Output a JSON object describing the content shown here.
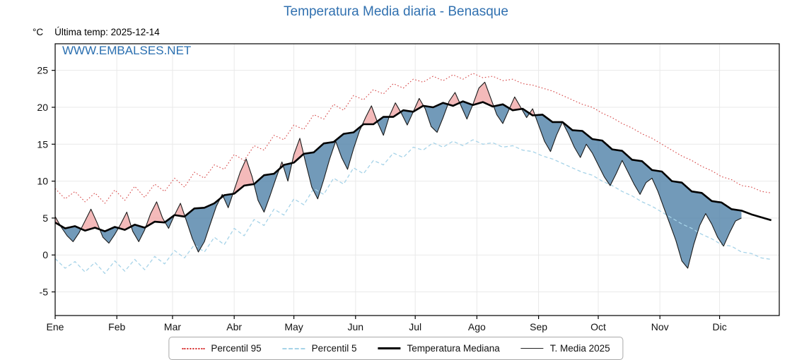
{
  "title": "Temperatura Media diaria - Benasque",
  "header": {
    "units_label": "°C",
    "last_temp_label": "Última temp: 2025-12-14"
  },
  "watermark": "WWW.EMBALSES.NET",
  "legend": {
    "items": [
      {
        "label": "Percentil 95",
        "color": "#d62728",
        "line_style": "dotted",
        "weight": 2
      },
      {
        "label": "Percentil 5",
        "color": "#a6d3e8",
        "line_style": "dashed",
        "weight": 2
      },
      {
        "label": "Temperatura Mediana",
        "color": "#000000",
        "line_style": "solid",
        "weight": 3
      },
      {
        "label": "T. Media 2025",
        "color": "#222222",
        "line_style": "solid",
        "weight": 1.5
      }
    ]
  },
  "chart_data": {
    "type": "line",
    "title": "Temperatura Media diaria - Benasque",
    "xlabel": "",
    "ylabel": "°C",
    "x_axis": {
      "tick_labels": [
        "Ene",
        "Feb",
        "Mar",
        "Abr",
        "May",
        "Jun",
        "Jul",
        "Ago",
        "Sep",
        "Oct",
        "Nov",
        "Dic"
      ],
      "month_start_days": [
        1,
        32,
        60,
        91,
        121,
        152,
        182,
        213,
        244,
        274,
        305,
        335
      ],
      "days_in_year": 365
    },
    "y_axis": {
      "ticks": [
        -5,
        0,
        5,
        10,
        15,
        20,
        25
      ],
      "ylim": [
        -8.2,
        28.6
      ]
    },
    "grid": true,
    "legend_position": "bottom-center",
    "fills": {
      "above_color": "#f0a3a3",
      "above_opacity": 0.75,
      "below_color": "#4f81a8",
      "below_opacity": 0.8
    },
    "series": [
      {
        "name": "Percentil 95",
        "style": "dotted",
        "color": "#d64545",
        "x_start": 1,
        "x_step": 5,
        "values": [
          9.0,
          7.6,
          8.6,
          7.2,
          8.4,
          7.0,
          8.8,
          7.4,
          9.3,
          7.8,
          9.6,
          8.6,
          10.4,
          9.2,
          11.2,
          10.4,
          12.2,
          11.6,
          13.6,
          12.8,
          14.8,
          14.2,
          16.2,
          15.6,
          17.6,
          17.0,
          19.0,
          18.4,
          20.4,
          19.6,
          21.6,
          21.0,
          22.4,
          21.8,
          23.2,
          22.6,
          23.8,
          23.4,
          24.2,
          23.6,
          24.4,
          23.8,
          24.6,
          24.0,
          24.2,
          23.6,
          23.8,
          23.2,
          23.0,
          22.6,
          22.2,
          21.6,
          21.0,
          20.4,
          20.0,
          19.2,
          18.6,
          17.8,
          17.2,
          16.4,
          15.8,
          15.0,
          14.2,
          13.4,
          12.8,
          12.0,
          11.4,
          10.6,
          10.2,
          9.4,
          9.2,
          8.6,
          8.4
        ]
      },
      {
        "name": "Percentil 5",
        "style": "dashed",
        "color": "#a6d3e8",
        "x_start": 1,
        "x_step": 5,
        "values": [
          -0.5,
          -1.8,
          -0.9,
          -2.3,
          -1.0,
          -2.5,
          -0.8,
          -2.2,
          -0.6,
          -2.0,
          -0.2,
          -1.2,
          0.6,
          -0.4,
          1.4,
          0.4,
          2.4,
          1.4,
          3.6,
          2.6,
          4.8,
          4.0,
          6.2,
          5.4,
          7.6,
          6.8,
          9.0,
          8.2,
          10.4,
          9.6,
          11.8,
          11.0,
          12.8,
          12.2,
          13.8,
          13.2,
          14.6,
          14.2,
          15.2,
          14.6,
          15.4,
          14.8,
          15.6,
          15.0,
          15.2,
          14.6,
          14.8,
          14.2,
          14.0,
          13.4,
          13.0,
          12.4,
          11.8,
          11.2,
          10.8,
          10.0,
          9.4,
          8.6,
          8.0,
          7.2,
          6.6,
          5.8,
          5.0,
          4.2,
          3.6,
          2.8,
          2.2,
          1.4,
          1.2,
          0.4,
          0.2,
          -0.4,
          -0.6
        ]
      },
      {
        "name": "Temperatura Mediana",
        "style": "solid-thick",
        "color": "#000000",
        "x_start": 1,
        "x_step": 5,
        "values": [
          4.4,
          3.6,
          3.9,
          3.3,
          3.7,
          3.2,
          3.8,
          3.4,
          4.1,
          3.7,
          4.5,
          4.4,
          5.4,
          5.2,
          6.3,
          6.4,
          7.0,
          8.1,
          8.3,
          9.4,
          9.6,
          10.8,
          11.0,
          12.2,
          12.5,
          13.7,
          13.9,
          15.1,
          15.3,
          16.4,
          16.6,
          17.7,
          17.7,
          18.7,
          18.7,
          19.6,
          19.4,
          20.2,
          20.0,
          20.6,
          20.2,
          20.8,
          20.3,
          20.7,
          20.1,
          20.4,
          19.6,
          19.8,
          18.9,
          19.0,
          18.0,
          18.0,
          16.9,
          16.8,
          15.7,
          15.5,
          14.3,
          14.1,
          12.9,
          12.7,
          11.5,
          11.3,
          10.0,
          9.8,
          8.6,
          8.4,
          7.3,
          7.1,
          6.2,
          6.0,
          5.5,
          5.1,
          4.7
        ]
      },
      {
        "name": "T. Media 2025",
        "style": "solid-thin",
        "color": "#1a1a1a",
        "x_start": 1,
        "x_step": 3,
        "values": [
          5.2,
          3.8,
          2.6,
          1.8,
          3.0,
          4.6,
          6.2,
          4.4,
          2.4,
          1.6,
          2.8,
          4.2,
          5.8,
          3.2,
          1.8,
          3.4,
          5.6,
          7.2,
          5.0,
          3.6,
          5.4,
          7.0,
          4.6,
          2.2,
          0.4,
          1.8,
          4.2,
          6.6,
          8.2,
          6.4,
          8.8,
          11.2,
          13.0,
          10.6,
          7.4,
          5.8,
          8.0,
          10.4,
          12.6,
          10.0,
          13.6,
          15.8,
          12.4,
          9.2,
          7.6,
          10.2,
          13.0,
          15.4,
          13.2,
          11.6,
          14.4,
          16.8,
          18.6,
          20.2,
          18.0,
          16.2,
          18.8,
          20.6,
          19.2,
          17.6,
          19.4,
          21.2,
          19.8,
          17.4,
          16.6,
          18.6,
          20.8,
          22.0,
          20.2,
          18.4,
          20.4,
          22.6,
          23.4,
          21.2,
          19.0,
          17.8,
          19.6,
          21.4,
          20.0,
          18.6,
          19.8,
          17.6,
          15.4,
          14.0,
          16.2,
          18.0,
          16.4,
          14.6,
          13.2,
          15.0,
          13.8,
          12.2,
          10.6,
          9.4,
          11.0,
          12.8,
          11.2,
          9.6,
          8.2,
          9.8,
          10.4,
          8.6,
          6.4,
          4.2,
          2.0,
          -0.8,
          -1.8,
          1.4,
          4.0,
          5.6,
          4.2,
          2.4,
          1.2,
          3.0,
          4.6,
          5.0
        ]
      }
    ]
  }
}
